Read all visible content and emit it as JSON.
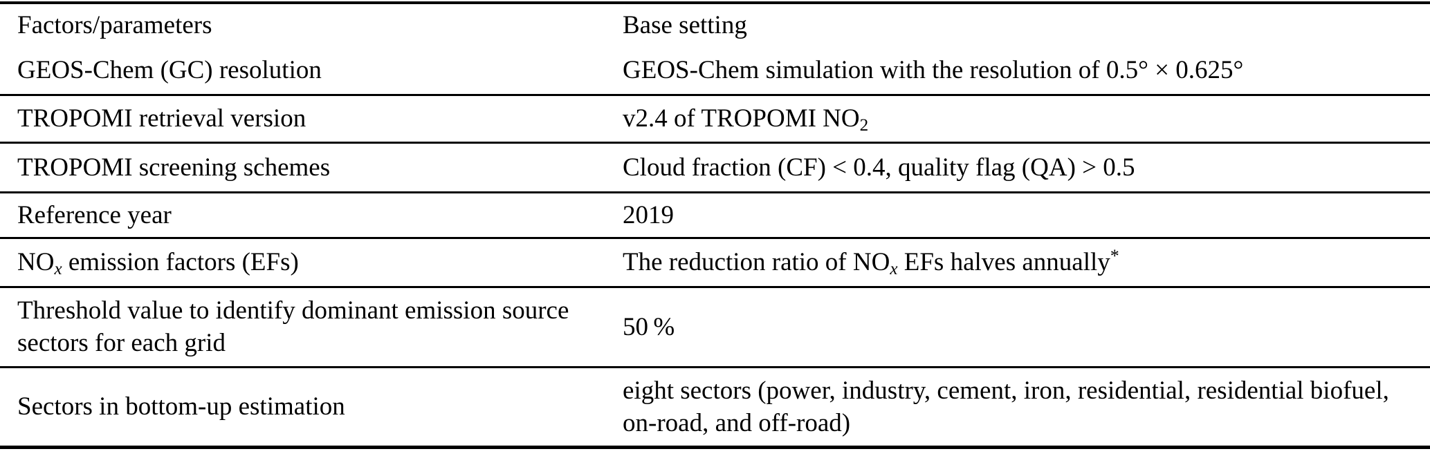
{
  "page": {
    "background_color": "#ffffff",
    "text_color": "#000000",
    "rule_color": "#000000"
  },
  "table": {
    "header": {
      "factors_label": "Factors/parameters",
      "base_setting_label": "Base setting"
    },
    "rows": [
      {
        "factor": [
          {
            "text": "GEOS-Chem (GC) resolution"
          }
        ],
        "setting": [
          {
            "text": "GEOS-Chem simulation with the resolution of 0.5° × 0.625°"
          }
        ]
      },
      {
        "factor": [
          {
            "text": "TROPOMI retrieval version"
          }
        ],
        "setting": [
          {
            "text": "v2.4 of TROPOMI NO"
          },
          {
            "text": "2",
            "style": "sub"
          }
        ]
      },
      {
        "factor": [
          {
            "text": "TROPOMI screening schemes"
          }
        ],
        "setting": [
          {
            "text": "Cloud fraction (CF) < 0.4, quality flag (QA) > 0.5"
          }
        ]
      },
      {
        "factor": [
          {
            "text": "Reference year"
          }
        ],
        "setting": [
          {
            "text": "2019"
          }
        ]
      },
      {
        "factor": [
          {
            "text": "NO"
          },
          {
            "text": "x",
            "style": "sub-italic"
          },
          {
            "text": " emission factors (EFs)"
          }
        ],
        "setting": [
          {
            "text": "The reduction ratio of NO"
          },
          {
            "text": "x",
            "style": "sub-italic"
          },
          {
            "text": " EFs halves annually"
          },
          {
            "text": "*",
            "style": "sup"
          }
        ]
      },
      {
        "factor": [
          {
            "text": "Threshold value to identify dominant emission source\nsectors for each grid"
          }
        ],
        "setting": [
          {
            "text": "50 %"
          }
        ]
      },
      {
        "factor": [
          {
            "text": "Sectors in bottom-up estimation"
          }
        ],
        "setting": [
          {
            "text": "eight sectors (power, industry, cement, iron, residential, residential biofuel,\non-road, and off-road)"
          }
        ]
      }
    ]
  }
}
